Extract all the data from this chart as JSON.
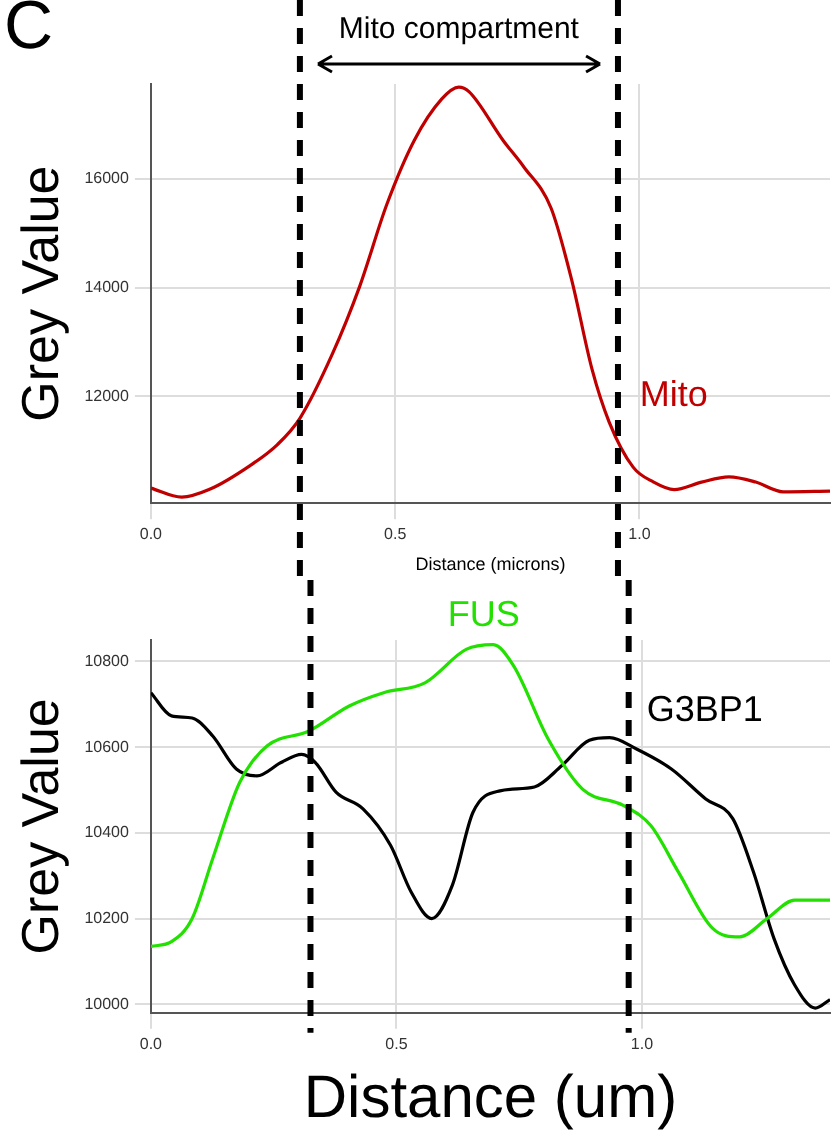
{
  "chart_data": [
    {
      "type": "line",
      "annotations": [
        "C",
        "Mito compartment"
      ],
      "xlabel": "Distance (microns)",
      "ylabel": "Grey Value",
      "xlim": [
        0,
        1.39
      ],
      "xticks": [
        {
          "value": 0,
          "label": "0.0"
        },
        {
          "value": 0.5,
          "label": "0.5"
        },
        {
          "value": 1,
          "label": "1.0"
        }
      ],
      "ylim": [
        10040,
        17740
      ],
      "yticks": [
        12000,
        14000,
        16000
      ],
      "grid": true,
      "legend": false,
      "ref_lines": [
        {
          "axis": "x",
          "value": 0.305,
          "line_style": "dashed",
          "color": "#000000"
        },
        {
          "axis": "x",
          "value": 0.956,
          "line_style": "dashed",
          "color": "#000000"
        }
      ],
      "series": [
        {
          "name": "Mito",
          "color": "#c00000",
          "x": [
            0,
            0.063,
            0.119,
            0.203,
            0.259,
            0.305,
            0.371,
            0.427,
            0.483,
            0.539,
            0.595,
            0.63,
            0.651,
            0.721,
            0.763,
            0.819,
            0.861,
            0.903,
            0.938,
            0.987,
            1.029,
            1.071,
            1.127,
            1.183,
            1.238,
            1.294,
            1.39
          ],
          "values": [
            10317,
            10152,
            10290,
            10731,
            11117,
            11600,
            12772,
            14014,
            15531,
            16703,
            17462,
            17683,
            17600,
            16703,
            16221,
            15462,
            14152,
            12497,
            11531,
            10703,
            10428,
            10290,
            10428,
            10524,
            10428,
            10248,
            10262
          ]
        }
      ]
    },
    {
      "type": "line",
      "xlabel": "Distance (um)",
      "ylabel": "Grey Value",
      "xlim": [
        0,
        1.383
      ],
      "xticks": [
        {
          "value": 0,
          "label": "0.0"
        },
        {
          "value": 0.5,
          "label": "0.5"
        },
        {
          "value": 1,
          "label": "1.0"
        }
      ],
      "ylim": [
        9980,
        10850
      ],
      "yticks": [
        10000,
        10200,
        10400,
        10600,
        10800
      ],
      "grid": true,
      "legend": false,
      "ref_lines": [
        {
          "axis": "x",
          "value": 0.325,
          "line_style": "dashed",
          "color": "#000000"
        },
        {
          "axis": "x",
          "value": 0.973,
          "line_style": "dashed",
          "color": "#000000"
        }
      ],
      "series": [
        {
          "name": "FUS",
          "color": "#22e000",
          "x": [
            0,
            0.042,
            0.084,
            0.126,
            0.181,
            0.237,
            0.321,
            0.404,
            0.474,
            0.558,
            0.642,
            0.697,
            0.739,
            0.809,
            0.879,
            0.962,
            1.018,
            1.074,
            1.144,
            1.199,
            1.255,
            1.311,
            1.383
          ],
          "values": [
            10135,
            10146,
            10200,
            10340,
            10518,
            10603,
            10637,
            10696,
            10727,
            10750,
            10828,
            10839,
            10789,
            10619,
            10502,
            10464,
            10417,
            10309,
            10177,
            10157,
            10200,
            10243,
            10243
          ]
        },
        {
          "name": "G3BP1",
          "color": "#000000",
          "x": [
            0,
            0.042,
            0.084,
            0.126,
            0.174,
            0.216,
            0.265,
            0.307,
            0.335,
            0.377,
            0.432,
            0.488,
            0.53,
            0.572,
            0.614,
            0.656,
            0.711,
            0.781,
            0.837,
            0.893,
            0.934,
            0.99,
            1.06,
            1.13,
            1.185,
            1.227,
            1.269,
            1.311,
            1.353,
            1.383
          ],
          "values": [
            10727,
            10673,
            10668,
            10626,
            10549,
            10533,
            10564,
            10583,
            10564,
            10495,
            10456,
            10371,
            10262,
            10200,
            10278,
            10448,
            10498,
            10507,
            10557,
            10616,
            10622,
            10595,
            10549,
            10479,
            10433,
            10309,
            10153,
            10045,
            9991,
            10011
          ]
        }
      ]
    }
  ]
}
